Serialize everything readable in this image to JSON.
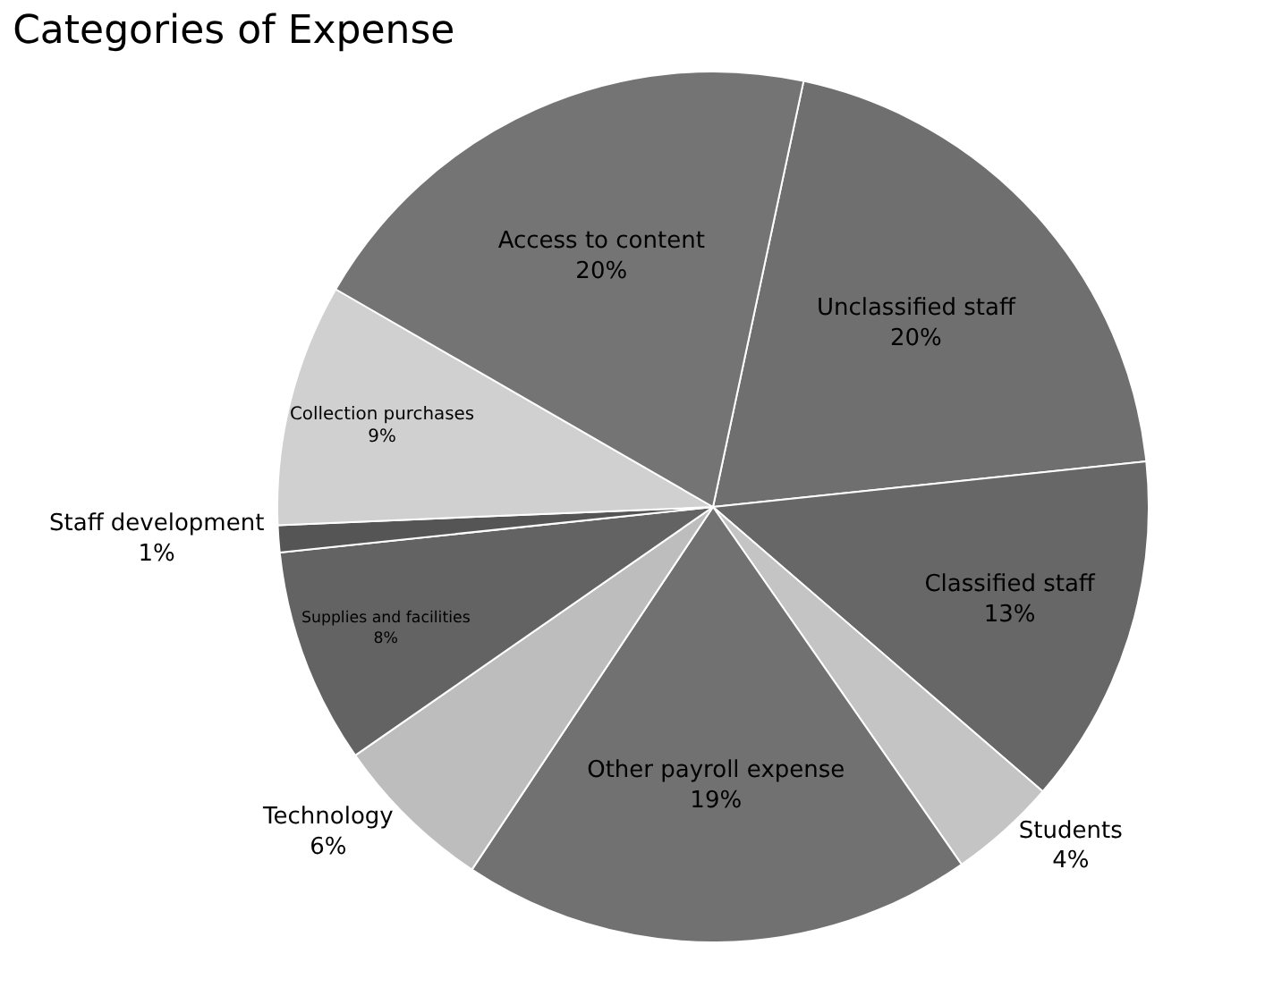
{
  "chart_data": {
    "type": "pie",
    "title": "Categories of Expense",
    "categories": [
      "Unclassified staff",
      "Classified staff",
      "Students",
      "Other payroll expense",
      "Technology",
      "Supplies and facilities",
      "Staff development",
      "Collection purchases",
      "Access to content"
    ],
    "values": [
      20,
      13,
      4,
      19,
      6,
      8,
      1,
      9,
      20
    ],
    "value_labels": [
      "20%",
      "13%",
      "4%",
      "19%",
      "6%",
      "8%",
      "1%",
      "9%",
      "20%"
    ],
    "colors": [
      "#6f6f6f",
      "#676767",
      "#c4c4c4",
      "#717171",
      "#bdbdbd",
      "#636363",
      "#555555",
      "#d0d0d0",
      "#747474"
    ],
    "legend": false
  }
}
